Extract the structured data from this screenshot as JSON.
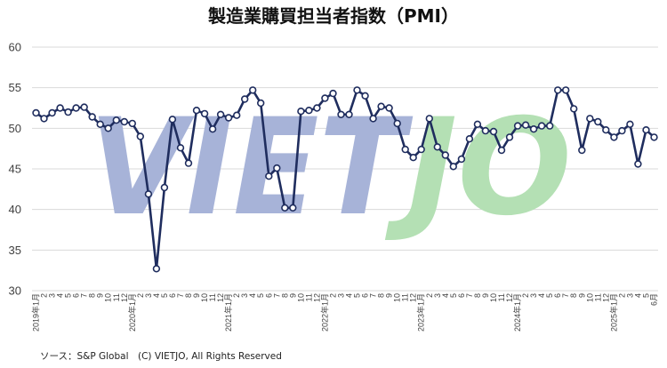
{
  "chart_data": {
    "type": "line",
    "title": "製造業購買担当者指数（PMI）",
    "ylim": [
      30,
      60
    ],
    "yticks": [
      "30",
      "35",
      "40",
      "45",
      "50",
      "55",
      "60"
    ],
    "grid": true,
    "x_labels": [
      "2019年1月",
      "2",
      "3",
      "4",
      "5",
      "6",
      "7",
      "8",
      "9",
      "10",
      "11",
      "12",
      "2020年1月",
      "2",
      "3",
      "4",
      "5",
      "6",
      "7",
      "8",
      "9",
      "10",
      "11",
      "12",
      "2021年1月",
      "2",
      "3",
      "4",
      "5",
      "6",
      "7",
      "8",
      "9",
      "10",
      "11",
      "12",
      "2022年1月",
      "2",
      "3",
      "4",
      "5",
      "6",
      "7",
      "8",
      "9",
      "10",
      "11",
      "12",
      "2023年1月",
      "2",
      "3",
      "4",
      "5",
      "6",
      "7",
      "8",
      "9",
      "10",
      "11",
      "12",
      "2024年1月",
      "2",
      "3",
      "4",
      "5",
      "6",
      "7",
      "8",
      "9",
      "10",
      "11",
      "12",
      "2025年1月",
      "2",
      "3",
      "4",
      "5",
      "6月"
    ],
    "series": [
      {
        "color": "#1f2d5e",
        "values": [
          51.9,
          51.2,
          51.9,
          52.5,
          52.0,
          52.5,
          52.6,
          51.4,
          50.5,
          50.0,
          51.0,
          50.8,
          50.6,
          49.0,
          41.9,
          32.7,
          42.7,
          51.1,
          47.6,
          45.7,
          52.2,
          51.8,
          49.9,
          51.7,
          51.3,
          51.6,
          53.6,
          54.7,
          53.1,
          44.1,
          45.1,
          40.2,
          40.2,
          52.1,
          52.2,
          52.5,
          53.7,
          54.3,
          51.7,
          51.7,
          54.7,
          54.0,
          51.2,
          52.7,
          52.5,
          50.6,
          47.4,
          46.4,
          47.4,
          51.2,
          47.7,
          46.7,
          45.3,
          46.2,
          48.7,
          50.5,
          49.7,
          49.6,
          47.3,
          48.9,
          50.3,
          50.4,
          49.9,
          50.3,
          50.3,
          54.7,
          54.7,
          52.4,
          47.3,
          51.2,
          50.8,
          49.8,
          48.9,
          49.7,
          50.5,
          45.6,
          49.8,
          48.9
        ]
      }
    ],
    "watermark": "VIETJO",
    "watermark_colors": {
      "blue": "#a7b3d8",
      "green": "#b4e0b4"
    }
  },
  "source_note": "ソース：S&P Global　(C) VIETJO, All Rights Reserved"
}
